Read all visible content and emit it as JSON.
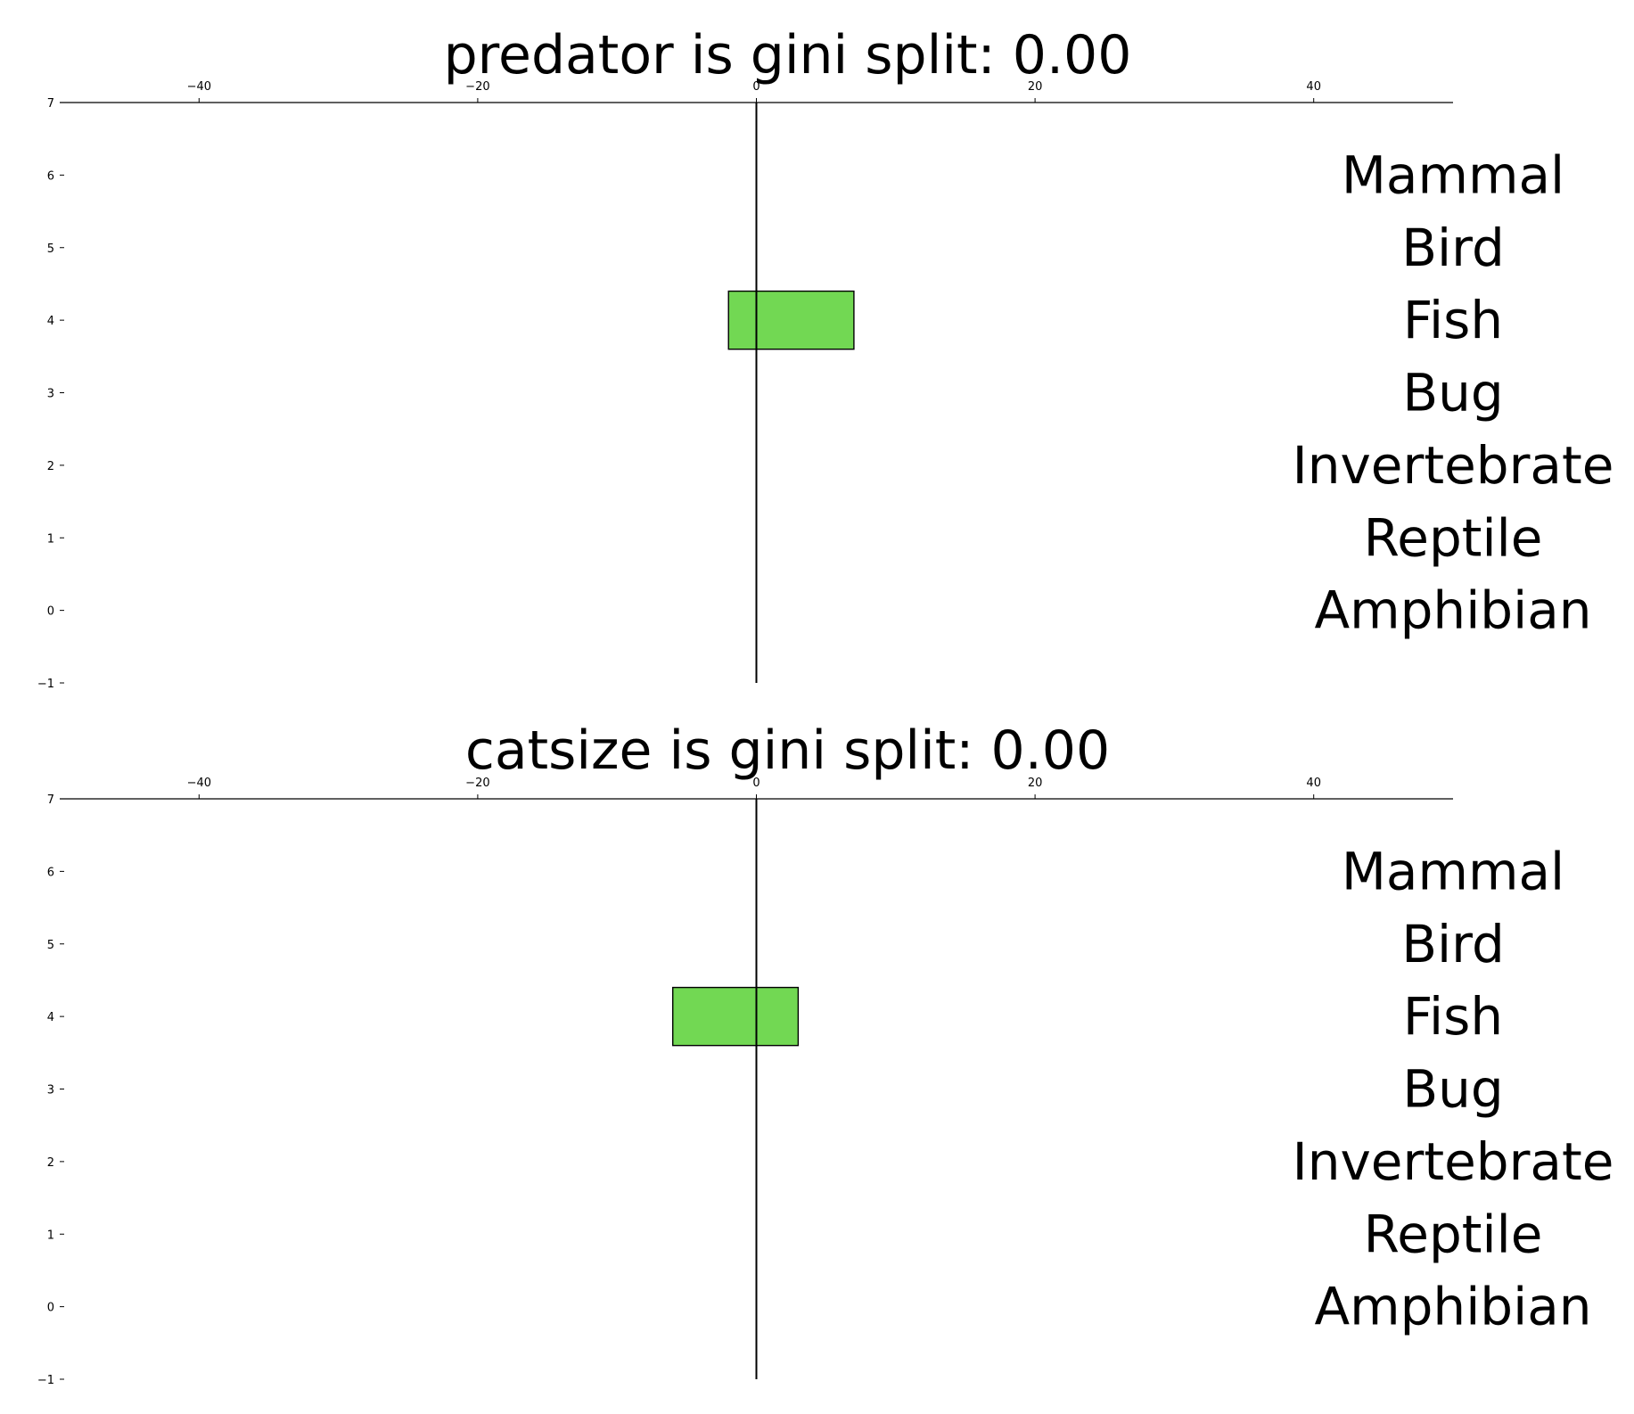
{
  "chart_data": [
    {
      "type": "bar",
      "orientation": "horizontal",
      "title": "predator is gini split: 0.00",
      "xlim": [
        -50,
        50
      ],
      "ylim": [
        -1,
        7
      ],
      "x_ticks": [
        -40,
        -20,
        0,
        20,
        40
      ],
      "x_tick_labels": [
        "−40",
        "−20",
        "0",
        "20",
        "40"
      ],
      "y_ticks": [
        -1,
        0,
        1,
        2,
        3,
        4,
        5,
        6,
        7
      ],
      "y_tick_labels": [
        "−1",
        "0",
        "1",
        "2",
        "3",
        "4",
        "5",
        "6",
        "7"
      ],
      "x_axis_position": "top",
      "grid": false,
      "classes": [
        "Mammal",
        "Bird",
        "Fish",
        "Bug",
        "Invertebrate",
        "Reptile",
        "Amphibian"
      ],
      "class_y": [
        6,
        5,
        4,
        3,
        2,
        1,
        0
      ],
      "bars": [
        {
          "class": "Fish",
          "y": 4,
          "x_start": -2,
          "x_end": 7,
          "color": "#72d853"
        }
      ],
      "zero_line_x": 0
    },
    {
      "type": "bar",
      "orientation": "horizontal",
      "title": "catsize is gini split: 0.00",
      "xlim": [
        -50,
        50
      ],
      "ylim": [
        -1,
        7
      ],
      "x_ticks": [
        -40,
        -20,
        0,
        20,
        40
      ],
      "x_tick_labels": [
        "−40",
        "−20",
        "0",
        "20",
        "40"
      ],
      "y_ticks": [
        -1,
        0,
        1,
        2,
        3,
        4,
        5,
        6,
        7
      ],
      "y_tick_labels": [
        "−1",
        "0",
        "1",
        "2",
        "3",
        "4",
        "5",
        "6",
        "7"
      ],
      "x_axis_position": "top",
      "grid": false,
      "classes": [
        "Mammal",
        "Bird",
        "Fish",
        "Bug",
        "Invertebrate",
        "Reptile",
        "Amphibian"
      ],
      "class_y": [
        6,
        5,
        4,
        3,
        2,
        1,
        0
      ],
      "bars": [
        {
          "class": "Fish",
          "y": 4,
          "x_start": -6,
          "x_end": 3,
          "color": "#72d853"
        }
      ],
      "zero_line_x": 0
    }
  ]
}
